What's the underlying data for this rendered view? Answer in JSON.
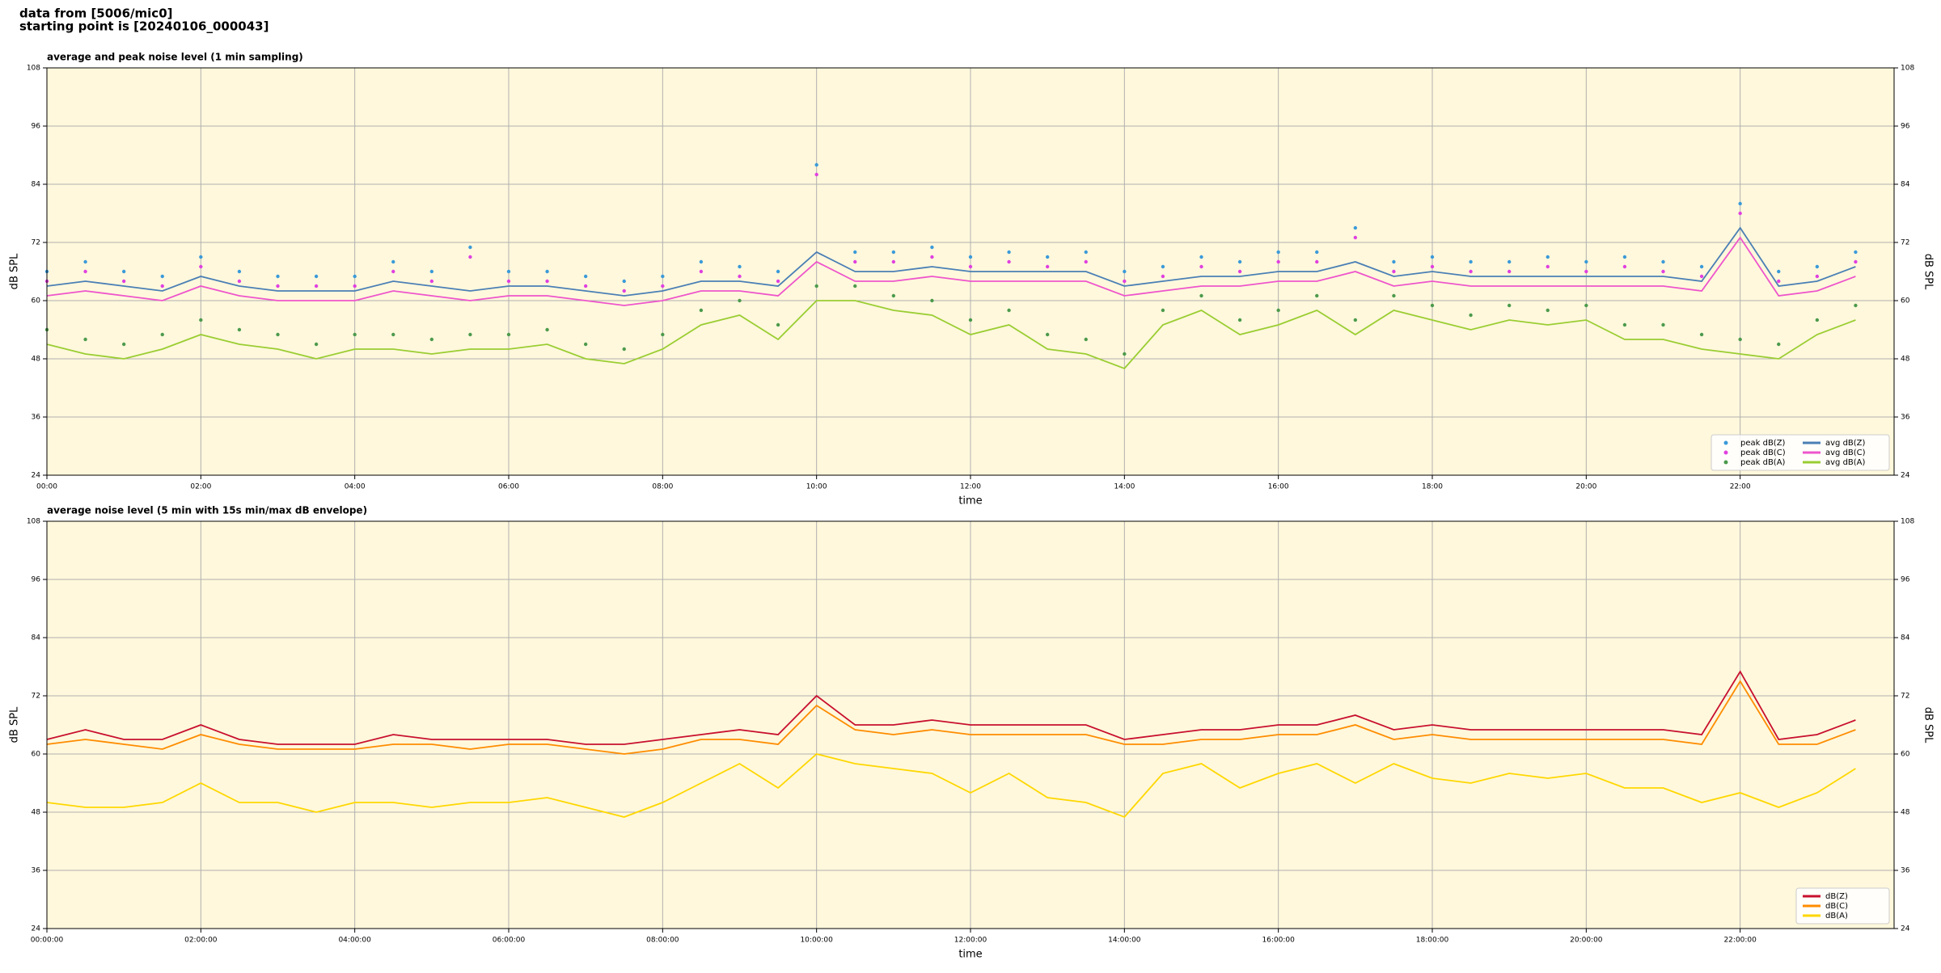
{
  "header": {
    "line1": "data from [5006/mic0]",
    "line2": "starting point is [20240106_000043]"
  },
  "chart_data": [
    {
      "type": "line",
      "title": "average and peak noise level (1 min sampling)",
      "x_label": "time",
      "y_label": "dB SPL",
      "x": [
        "00:00",
        "00:30",
        "01:00",
        "01:30",
        "02:00",
        "02:30",
        "03:00",
        "03:30",
        "04:00",
        "04:30",
        "05:00",
        "05:30",
        "06:00",
        "06:30",
        "07:00",
        "07:30",
        "08:00",
        "08:30",
        "09:00",
        "09:30",
        "10:00",
        "10:30",
        "11:00",
        "11:30",
        "12:00",
        "12:30",
        "13:00",
        "13:30",
        "14:00",
        "14:30",
        "15:00",
        "15:30",
        "16:00",
        "16:30",
        "17:00",
        "17:30",
        "18:00",
        "18:30",
        "19:00",
        "19:30",
        "20:00",
        "20:30",
        "21:00",
        "21:30",
        "22:00",
        "22:30",
        "23:00",
        "23:30"
      ],
      "xlim": [
        "00:00",
        "24:00"
      ],
      "xticks": [
        "00:00",
        "02:00",
        "04:00",
        "06:00",
        "08:00",
        "10:00",
        "12:00",
        "14:00",
        "16:00",
        "18:00",
        "20:00",
        "22:00"
      ],
      "ylim": [
        24,
        108
      ],
      "yticks": [
        24,
        36,
        48,
        60,
        72,
        84,
        96,
        108
      ],
      "grid": true,
      "background": "#fff8dc",
      "legend": "lower right",
      "legend_columns": 2,
      "series": [
        {
          "name": "peak dB(Z)",
          "color": "#3a9ad9",
          "mode": "markers",
          "values": [
            66,
            68,
            66,
            65,
            69,
            66,
            65,
            65,
            65,
            68,
            66,
            71,
            66,
            66,
            65,
            64,
            65,
            68,
            67,
            66,
            88,
            70,
            70,
            71,
            69,
            70,
            69,
            70,
            66,
            67,
            69,
            68,
            70,
            70,
            75,
            68,
            69,
            68,
            68,
            69,
            68,
            69,
            68,
            67,
            80,
            66,
            67,
            70
          ]
        },
        {
          "name": "peak dB(C)",
          "color": "#e040e0",
          "mode": "markers",
          "values": [
            64,
            66,
            64,
            63,
            67,
            64,
            63,
            63,
            63,
            66,
            64,
            69,
            64,
            64,
            63,
            62,
            63,
            66,
            65,
            64,
            86,
            68,
            68,
            69,
            67,
            68,
            67,
            68,
            64,
            65,
            67,
            66,
            68,
            68,
            73,
            66,
            67,
            66,
            66,
            67,
            66,
            67,
            66,
            65,
            78,
            64,
            65,
            68
          ]
        },
        {
          "name": "peak dB(A)",
          "color": "#4c9a4c",
          "mode": "markers",
          "values": [
            54,
            52,
            51,
            53,
            56,
            54,
            53,
            51,
            53,
            53,
            52,
            53,
            53,
            54,
            51,
            50,
            53,
            58,
            60,
            55,
            63,
            63,
            61,
            60,
            56,
            58,
            53,
            52,
            49,
            58,
            61,
            56,
            58,
            61,
            56,
            61,
            59,
            57,
            59,
            58,
            59,
            55,
            55,
            53,
            52,
            51,
            56,
            59
          ]
        },
        {
          "name": "avg dB(Z)",
          "color": "#4a7fb5",
          "mode": "lines",
          "values": [
            63,
            64,
            63,
            62,
            65,
            63,
            62,
            62,
            62,
            64,
            63,
            62,
            63,
            63,
            62,
            61,
            62,
            64,
            64,
            63,
            70,
            66,
            66,
            67,
            66,
            66,
            66,
            66,
            63,
            64,
            65,
            65,
            66,
            66,
            68,
            65,
            66,
            65,
            65,
            65,
            65,
            65,
            65,
            64,
            75,
            63,
            64,
            67
          ]
        },
        {
          "name": "avg dB(C)",
          "color": "#ee55cc",
          "mode": "lines",
          "values": [
            61,
            62,
            61,
            60,
            63,
            61,
            60,
            60,
            60,
            62,
            61,
            60,
            61,
            61,
            60,
            59,
            60,
            62,
            62,
            61,
            68,
            64,
            64,
            65,
            64,
            64,
            64,
            64,
            61,
            62,
            63,
            63,
            64,
            64,
            66,
            63,
            64,
            63,
            63,
            63,
            63,
            63,
            63,
            62,
            73,
            61,
            62,
            65
          ]
        },
        {
          "name": "avg dB(A)",
          "color": "#9acd32",
          "mode": "lines",
          "values": [
            51,
            49,
            48,
            50,
            53,
            51,
            50,
            48,
            50,
            50,
            49,
            50,
            50,
            51,
            48,
            47,
            50,
            55,
            57,
            52,
            60,
            60,
            58,
            57,
            53,
            55,
            50,
            49,
            46,
            55,
            58,
            53,
            55,
            58,
            53,
            58,
            56,
            54,
            56,
            55,
            56,
            52,
            52,
            50,
            49,
            48,
            53,
            56
          ]
        }
      ]
    },
    {
      "type": "line",
      "title": "average noise level (5 min with 15s min/max dB envelope)",
      "x_label": "time",
      "y_label": "dB SPL",
      "x": [
        "00:00:00",
        "00:30:00",
        "01:00:00",
        "01:30:00",
        "02:00:00",
        "02:30:00",
        "03:00:00",
        "03:30:00",
        "04:00:00",
        "04:30:00",
        "05:00:00",
        "05:30:00",
        "06:00:00",
        "06:30:00",
        "07:00:00",
        "07:30:00",
        "08:00:00",
        "08:30:00",
        "09:00:00",
        "09:30:00",
        "10:00:00",
        "10:30:00",
        "11:00:00",
        "11:30:00",
        "12:00:00",
        "12:30:00",
        "13:00:00",
        "13:30:00",
        "14:00:00",
        "14:30:00",
        "15:00:00",
        "15:30:00",
        "16:00:00",
        "16:30:00",
        "17:00:00",
        "17:30:00",
        "18:00:00",
        "18:30:00",
        "19:00:00",
        "19:30:00",
        "20:00:00",
        "20:30:00",
        "21:00:00",
        "21:30:00",
        "22:00:00",
        "22:30:00",
        "23:00:00",
        "23:30:00"
      ],
      "xlim": [
        "00:00:00",
        "24:00:00"
      ],
      "xticks": [
        "00:00:00",
        "02:00:00",
        "04:00:00",
        "06:00:00",
        "08:00:00",
        "10:00:00",
        "12:00:00",
        "14:00:00",
        "16:00:00",
        "18:00:00",
        "20:00:00",
        "22:00:00"
      ],
      "ylim": [
        24,
        108
      ],
      "yticks": [
        24,
        36,
        48,
        60,
        72,
        84,
        96,
        108
      ],
      "grid": true,
      "background": "#fff8dc",
      "legend": "lower right",
      "legend_columns": 1,
      "series": [
        {
          "name": "dB(Z)",
          "color": "#c8102e",
          "mode": "lines",
          "values": [
            63,
            65,
            63,
            63,
            66,
            63,
            62,
            62,
            62,
            64,
            63,
            63,
            63,
            63,
            62,
            62,
            63,
            64,
            65,
            64,
            72,
            66,
            66,
            67,
            66,
            66,
            66,
            66,
            63,
            64,
            65,
            65,
            66,
            66,
            68,
            65,
            66,
            65,
            65,
            65,
            65,
            65,
            65,
            64,
            77,
            63,
            64,
            67
          ]
        },
        {
          "name": "dB(C)",
          "color": "#ff8c00",
          "mode": "lines",
          "values": [
            62,
            63,
            62,
            61,
            64,
            62,
            61,
            61,
            61,
            62,
            62,
            61,
            62,
            62,
            61,
            60,
            61,
            63,
            63,
            62,
            70,
            65,
            64,
            65,
            64,
            64,
            64,
            64,
            62,
            62,
            63,
            63,
            64,
            64,
            66,
            63,
            64,
            63,
            63,
            63,
            63,
            63,
            63,
            62,
            75,
            62,
            62,
            65
          ]
        },
        {
          "name": "dB(A)",
          "color": "#ffd700",
          "mode": "lines",
          "values": [
            50,
            49,
            49,
            50,
            54,
            50,
            50,
            48,
            50,
            50,
            49,
            50,
            50,
            51,
            49,
            47,
            50,
            54,
            58,
            53,
            60,
            58,
            57,
            56,
            52,
            56,
            51,
            50,
            47,
            56,
            58,
            53,
            56,
            58,
            54,
            58,
            55,
            54,
            56,
            55,
            56,
            53,
            53,
            50,
            52,
            49,
            52,
            57
          ]
        }
      ]
    }
  ]
}
